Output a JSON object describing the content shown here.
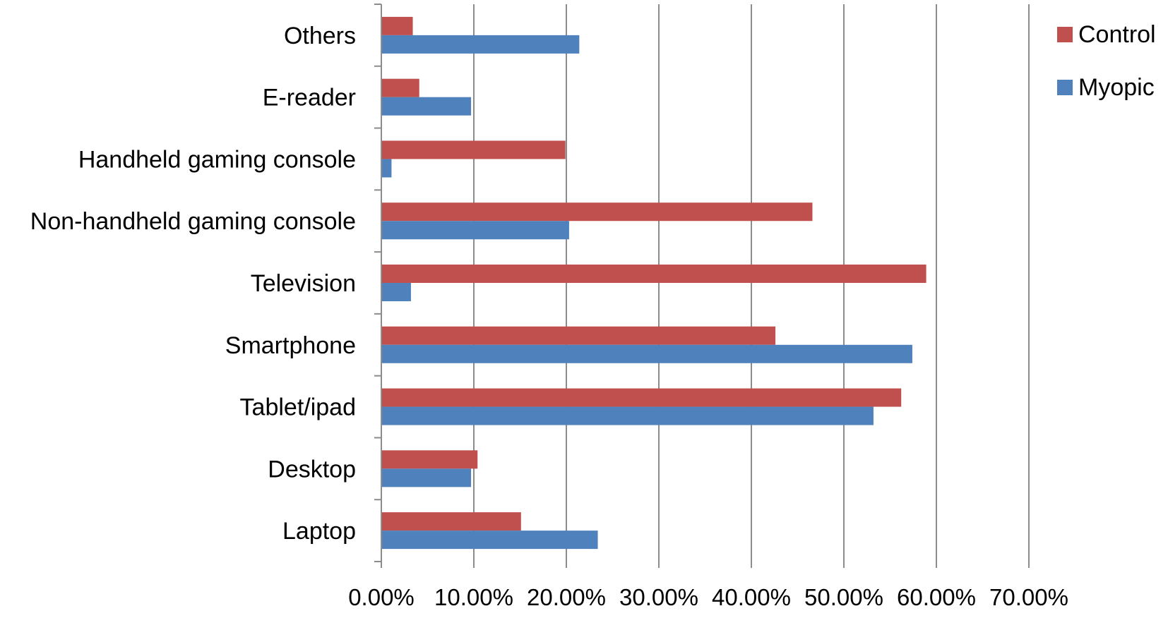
{
  "chart_data": {
    "type": "bar",
    "orientation": "horizontal",
    "categories": [
      "Laptop",
      "Desktop",
      "Tablet/ipad",
      "Smartphone",
      "Television",
      "Non-handheld gaming console",
      "Handheld gaming console",
      "E-reader",
      "Others"
    ],
    "series": [
      {
        "name": "Control",
        "color": "#C0504D",
        "values": [
          15.1,
          10.4,
          56.2,
          42.6,
          58.9,
          46.6,
          19.9,
          4.1,
          3.4
        ]
      },
      {
        "name": "Myopic",
        "color": "#4F81BD",
        "values": [
          23.4,
          9.7,
          53.2,
          57.4,
          3.2,
          20.3,
          1.1,
          9.7,
          21.4
        ]
      }
    ],
    "xlim": [
      0,
      70
    ],
    "xticks": [
      "0.00%",
      "10.00%",
      "20.00%",
      "30.00%",
      "40.00%",
      "50.00%",
      "60.00%",
      "70.00%"
    ],
    "grid": "vertical",
    "legend_position": "top-right",
    "title": "",
    "xlabel": "",
    "ylabel": ""
  }
}
